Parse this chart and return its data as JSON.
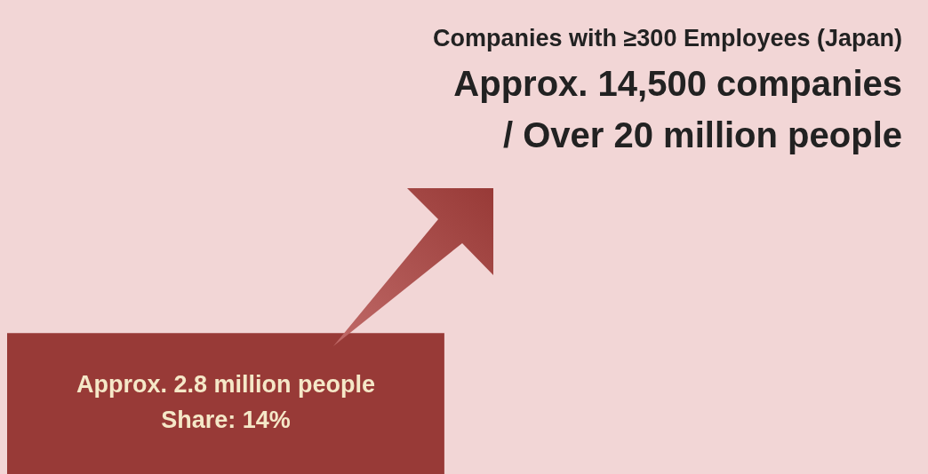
{
  "chart_data": {
    "type": "other",
    "title": "Companies with ≥300 Employees (Japan)",
    "categories": [
      null,
      null
    ],
    "values": [
      20,
      2.8
    ],
    "value_labels": [
      "/ Over 20 million people",
      "Approx. 2.8 million people"
    ],
    "annotations": [
      "Approx. 14,500 companies",
      "Share: 14%"
    ],
    "colors": [
      "#f2d6d6",
      "#983a37"
    ]
  }
}
